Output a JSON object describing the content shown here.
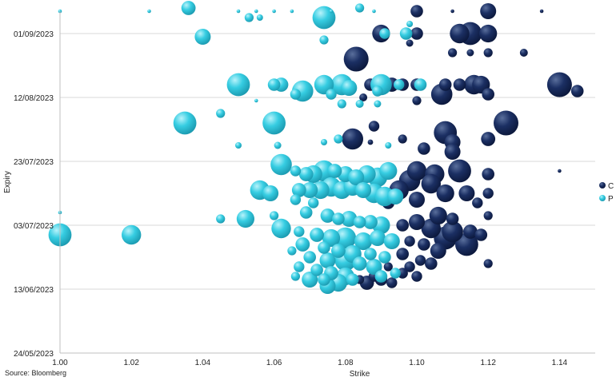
{
  "chart_data": {
    "type": "scatter",
    "xlabel": "Strike",
    "ylabel": "Expiry",
    "xlim": [
      1.0,
      1.15
    ],
    "ylim": [
      "2023-05-24",
      "2023-09-08"
    ],
    "x_ticks": [
      "1.00",
      "1.02",
      "1.04",
      "1.06",
      "1.08",
      "1.10",
      "1.12",
      "1.14"
    ],
    "y_ticks": [
      {
        "date": "2023-09-01",
        "label": "01/09/2023"
      },
      {
        "date": "2023-08-12",
        "label": "12/08/2023"
      },
      {
        "date": "2023-07-23",
        "label": "23/07/2023"
      },
      {
        "date": "2023-07-03",
        "label": "03/07/2023"
      },
      {
        "date": "2023-06-13",
        "label": "13/06/2023"
      },
      {
        "date": "2023-05-24",
        "label": "24/05/2023"
      }
    ],
    "grid": "horizontal",
    "legend_position": "right",
    "source": "Source: Bloomberg",
    "series": [
      {
        "name": "C",
        "color": "#14285a",
        "points": [
          [
            1.1,
            "2023-09-08",
            0.6
          ],
          [
            1.12,
            "2023-09-08",
            0.8
          ],
          [
            1.11,
            "2023-09-08",
            0.1
          ],
          [
            1.135,
            "2023-09-08",
            0.1
          ],
          [
            1.09,
            "2023-09-01",
            0.9
          ],
          [
            1.112,
            "2023-09-01",
            1.0
          ],
          [
            1.115,
            "2023-09-01",
            1.2
          ],
          [
            1.12,
            "2023-09-01",
            0.9
          ],
          [
            1.1,
            "2023-09-01",
            0.6
          ],
          [
            1.098,
            "2023-08-29",
            0.3
          ],
          [
            1.11,
            "2023-08-26",
            0.4
          ],
          [
            1.115,
            "2023-08-26",
            0.3
          ],
          [
            1.13,
            "2023-08-26",
            0.35
          ],
          [
            1.12,
            "2023-08-26",
            0.4
          ],
          [
            1.083,
            "2023-08-24",
            1.3
          ],
          [
            1.087,
            "2023-08-16",
            0.6
          ],
          [
            1.093,
            "2023-08-16",
            0.7
          ],
          [
            1.096,
            "2023-08-16",
            0.6
          ],
          [
            1.1,
            "2023-08-16",
            0.6
          ],
          [
            1.108,
            "2023-08-16",
            0.6
          ],
          [
            1.112,
            "2023-08-16",
            0.6
          ],
          [
            1.116,
            "2023-08-16",
            1.0
          ],
          [
            1.118,
            "2023-08-16",
            0.9
          ],
          [
            1.14,
            "2023-08-16",
            1.3
          ],
          [
            1.145,
            "2023-08-14",
            0.6
          ],
          [
            1.107,
            "2023-08-13",
            1.1
          ],
          [
            1.12,
            "2023-08-13",
            0.6
          ],
          [
            1.085,
            "2023-08-12",
            0.35
          ],
          [
            1.1,
            "2023-08-11",
            0.4
          ],
          [
            1.125,
            "2023-08-04",
            1.3
          ],
          [
            1.088,
            "2023-08-03",
            0.5
          ],
          [
            1.108,
            "2023-08-01",
            1.2
          ],
          [
            1.082,
            "2023-07-30",
            1.1
          ],
          [
            1.096,
            "2023-07-30",
            0.4
          ],
          [
            1.11,
            "2023-07-29",
            0.8
          ],
          [
            1.12,
            "2023-07-30",
            0.7
          ],
          [
            1.087,
            "2023-07-29",
            0.2
          ],
          [
            1.102,
            "2023-07-27",
            0.6
          ],
          [
            1.11,
            "2023-07-26",
            0.8
          ],
          [
            1.1,
            "2023-07-20",
            1.0
          ],
          [
            1.105,
            "2023-07-19",
            1.0
          ],
          [
            1.112,
            "2023-07-20",
            1.2
          ],
          [
            1.12,
            "2023-07-19",
            0.6
          ],
          [
            1.14,
            "2023-07-20",
            0.1
          ],
          [
            1.098,
            "2023-07-17",
            1.1
          ],
          [
            1.104,
            "2023-07-16",
            1.0
          ],
          [
            1.095,
            "2023-07-14",
            1.0
          ],
          [
            1.108,
            "2023-07-13",
            0.9
          ],
          [
            1.114,
            "2023-07-13",
            0.8
          ],
          [
            1.12,
            "2023-07-13",
            0.5
          ],
          [
            1.1,
            "2023-07-11",
            0.8
          ],
          [
            1.092,
            "2023-07-10",
            0.6
          ],
          [
            1.117,
            "2023-07-10",
            0.5
          ],
          [
            1.12,
            "2023-07-06",
            0.4
          ],
          [
            1.106,
            "2023-07-06",
            0.9
          ],
          [
            1.11,
            "2023-07-05",
            0.6
          ],
          [
            1.1,
            "2023-07-04",
            0.8
          ],
          [
            1.096,
            "2023-07-03",
            0.6
          ],
          [
            1.104,
            "2023-07-02",
            1.0
          ],
          [
            1.11,
            "2023-07-01",
            1.1
          ],
          [
            1.115,
            "2023-07-01",
            0.7
          ],
          [
            1.118,
            "2023-06-30",
            0.6
          ],
          [
            1.108,
            "2023-06-29",
            1.2
          ],
          [
            1.114,
            "2023-06-27",
            1.2
          ],
          [
            1.098,
            "2023-06-28",
            0.5
          ],
          [
            1.093,
            "2023-06-28",
            0.6
          ],
          [
            1.102,
            "2023-06-27",
            0.6
          ],
          [
            1.106,
            "2023-06-25",
            0.8
          ],
          [
            1.096,
            "2023-06-24",
            0.6
          ],
          [
            1.101,
            "2023-06-22",
            0.5
          ],
          [
            1.104,
            "2023-06-21",
            0.6
          ],
          [
            1.098,
            "2023-06-20",
            0.5
          ],
          [
            1.092,
            "2023-06-20",
            0.4
          ],
          [
            1.096,
            "2023-06-18",
            0.5
          ],
          [
            1.088,
            "2023-06-17",
            0.5
          ],
          [
            1.09,
            "2023-06-16",
            0.6
          ],
          [
            1.1,
            "2023-06-17",
            0.5
          ],
          [
            1.086,
            "2023-06-15",
            0.7
          ],
          [
            1.093,
            "2023-06-15",
            0.5
          ],
          [
            1.084,
            "2023-06-16",
            0.4
          ],
          [
            1.12,
            "2023-06-21",
            0.4
          ]
        ]
      },
      {
        "name": "P",
        "color": "#33cce0",
        "points": [
          [
            1.036,
            "2023-09-09",
            0.7
          ],
          [
            1.084,
            "2023-09-09",
            0.4
          ],
          [
            1.0,
            "2023-09-08",
            0.1
          ],
          [
            1.025,
            "2023-09-08",
            0.1
          ],
          [
            1.05,
            "2023-09-08",
            0.1
          ],
          [
            1.055,
            "2023-09-08",
            0.1
          ],
          [
            1.06,
            "2023-09-08",
            0.1
          ],
          [
            1.065,
            "2023-09-08",
            0.1
          ],
          [
            1.076,
            "2023-09-08",
            0.1
          ],
          [
            1.088,
            "2023-09-08",
            0.1
          ],
          [
            1.053,
            "2023-09-06",
            0.4
          ],
          [
            1.056,
            "2023-09-06",
            0.25
          ],
          [
            1.074,
            "2023-09-06",
            1.2
          ],
          [
            1.098,
            "2023-09-04",
            0.25
          ],
          [
            1.04,
            "2023-08-31",
            0.8
          ],
          [
            1.074,
            "2023-08-30",
            0.4
          ],
          [
            1.091,
            "2023-09-01",
            0.5
          ],
          [
            1.097,
            "2023-09-01",
            0.6
          ],
          [
            1.05,
            "2023-08-16",
            1.2
          ],
          [
            1.06,
            "2023-08-16",
            0.6
          ],
          [
            1.062,
            "2023-08-16",
            0.7
          ],
          [
            1.068,
            "2023-08-14",
            1.1
          ],
          [
            1.066,
            "2023-08-13",
            0.5
          ],
          [
            1.074,
            "2023-08-16",
            1.0
          ],
          [
            1.079,
            "2023-08-16",
            1.1
          ],
          [
            1.081,
            "2023-08-15",
            0.8
          ],
          [
            1.076,
            "2023-08-13",
            0.5
          ],
          [
            1.09,
            "2023-08-16",
            1.1
          ],
          [
            1.089,
            "2023-08-14",
            0.5
          ],
          [
            1.095,
            "2023-08-16",
            0.5
          ],
          [
            1.101,
            "2023-08-16",
            0.6
          ],
          [
            1.079,
            "2023-08-10",
            0.4
          ],
          [
            1.084,
            "2023-08-10",
            0.35
          ],
          [
            1.089,
            "2023-08-10",
            0.3
          ],
          [
            1.055,
            "2023-08-11",
            0.1
          ],
          [
            1.035,
            "2023-08-04",
            1.2
          ],
          [
            1.045,
            "2023-08-07",
            0.4
          ],
          [
            1.06,
            "2023-08-04",
            1.2
          ],
          [
            1.078,
            "2023-07-30",
            0.4
          ],
          [
            1.074,
            "2023-07-29",
            0.25
          ],
          [
            1.05,
            "2023-07-28",
            0.25
          ],
          [
            1.061,
            "2023-07-28",
            0.3
          ],
          [
            1.092,
            "2023-07-28",
            0.25
          ],
          [
            1.062,
            "2023-07-22",
            1.1
          ],
          [
            1.066,
            "2023-07-20",
            0.5
          ],
          [
            1.069,
            "2023-07-19",
            0.7
          ],
          [
            1.071,
            "2023-07-19",
            0.9
          ],
          [
            1.074,
            "2023-07-20",
            1.1
          ],
          [
            1.077,
            "2023-07-20",
            0.7
          ],
          [
            1.08,
            "2023-07-19",
            0.8
          ],
          [
            1.083,
            "2023-07-18",
            0.8
          ],
          [
            1.086,
            "2023-07-19",
            0.9
          ],
          [
            1.089,
            "2023-07-18",
            1.0
          ],
          [
            1.092,
            "2023-07-20",
            0.9
          ],
          [
            1.056,
            "2023-07-14",
            1.0
          ],
          [
            1.059,
            "2023-07-13",
            0.8
          ],
          [
            1.067,
            "2023-07-14",
            0.7
          ],
          [
            1.07,
            "2023-07-14",
            0.8
          ],
          [
            1.073,
            "2023-07-14",
            0.9
          ],
          [
            1.076,
            "2023-07-15",
            1.0
          ],
          [
            1.079,
            "2023-07-14",
            0.9
          ],
          [
            1.082,
            "2023-07-15",
            0.9
          ],
          [
            1.085,
            "2023-07-14",
            0.8
          ],
          [
            1.088,
            "2023-07-13",
            1.0
          ],
          [
            1.091,
            "2023-07-12",
            1.0
          ],
          [
            1.094,
            "2023-07-12",
            0.8
          ],
          [
            1.066,
            "2023-07-11",
            0.5
          ],
          [
            1.071,
            "2023-07-10",
            0.5
          ],
          [
            1.069,
            "2023-07-07",
            0.6
          ],
          [
            1.075,
            "2023-07-06",
            0.7
          ],
          [
            1.078,
            "2023-07-05",
            0.6
          ],
          [
            1.081,
            "2023-07-05",
            0.8
          ],
          [
            1.084,
            "2023-07-04",
            0.6
          ],
          [
            1.087,
            "2023-07-04",
            0.7
          ],
          [
            1.09,
            "2023-07-03",
            0.9
          ],
          [
            1.06,
            "2023-07-06",
            0.4
          ],
          [
            1.052,
            "2023-07-05",
            0.9
          ],
          [
            1.045,
            "2023-07-05",
            0.4
          ],
          [
            1.0,
            "2023-07-07",
            0.1
          ],
          [
            1.0,
            "2023-06-30",
            1.2
          ],
          [
            1.02,
            "2023-06-30",
            1.0
          ],
          [
            1.062,
            "2023-07-02",
            1.0
          ],
          [
            1.067,
            "2023-07-01",
            0.5
          ],
          [
            1.072,
            "2023-06-30",
            0.7
          ],
          [
            1.076,
            "2023-06-29",
            0.9
          ],
          [
            1.08,
            "2023-06-29",
            1.1
          ],
          [
            1.085,
            "2023-06-28",
            0.9
          ],
          [
            1.089,
            "2023-06-29",
            0.8
          ],
          [
            1.093,
            "2023-06-28",
            0.8
          ],
          [
            1.068,
            "2023-06-27",
            0.7
          ],
          [
            1.074,
            "2023-06-26",
            0.6
          ],
          [
            1.078,
            "2023-06-25",
            0.7
          ],
          [
            1.082,
            "2023-06-24",
            0.9
          ],
          [
            1.087,
            "2023-06-24",
            0.6
          ],
          [
            1.091,
            "2023-06-23",
            0.6
          ],
          [
            1.065,
            "2023-06-25",
            0.4
          ],
          [
            1.07,
            "2023-06-23",
            0.6
          ],
          [
            1.075,
            "2023-06-22",
            0.8
          ],
          [
            1.08,
            "2023-06-22",
            1.1
          ],
          [
            1.084,
            "2023-06-21",
            0.7
          ],
          [
            1.088,
            "2023-06-20",
            0.8
          ],
          [
            1.067,
            "2023-06-20",
            0.5
          ],
          [
            1.072,
            "2023-06-19",
            0.6
          ],
          [
            1.076,
            "2023-06-18",
            0.7
          ],
          [
            1.08,
            "2023-06-17",
            0.9
          ],
          [
            1.07,
            "2023-06-16",
            0.8
          ],
          [
            1.074,
            "2023-06-16",
            0.6
          ],
          [
            1.078,
            "2023-06-15",
            0.9
          ],
          [
            1.082,
            "2023-06-16",
            0.6
          ],
          [
            1.066,
            "2023-06-17",
            0.4
          ],
          [
            1.075,
            "2023-06-14",
            0.8
          ],
          [
            1.09,
            "2023-06-17",
            0.6
          ],
          [
            1.094,
            "2023-06-18",
            0.5
          ]
        ]
      }
    ]
  }
}
